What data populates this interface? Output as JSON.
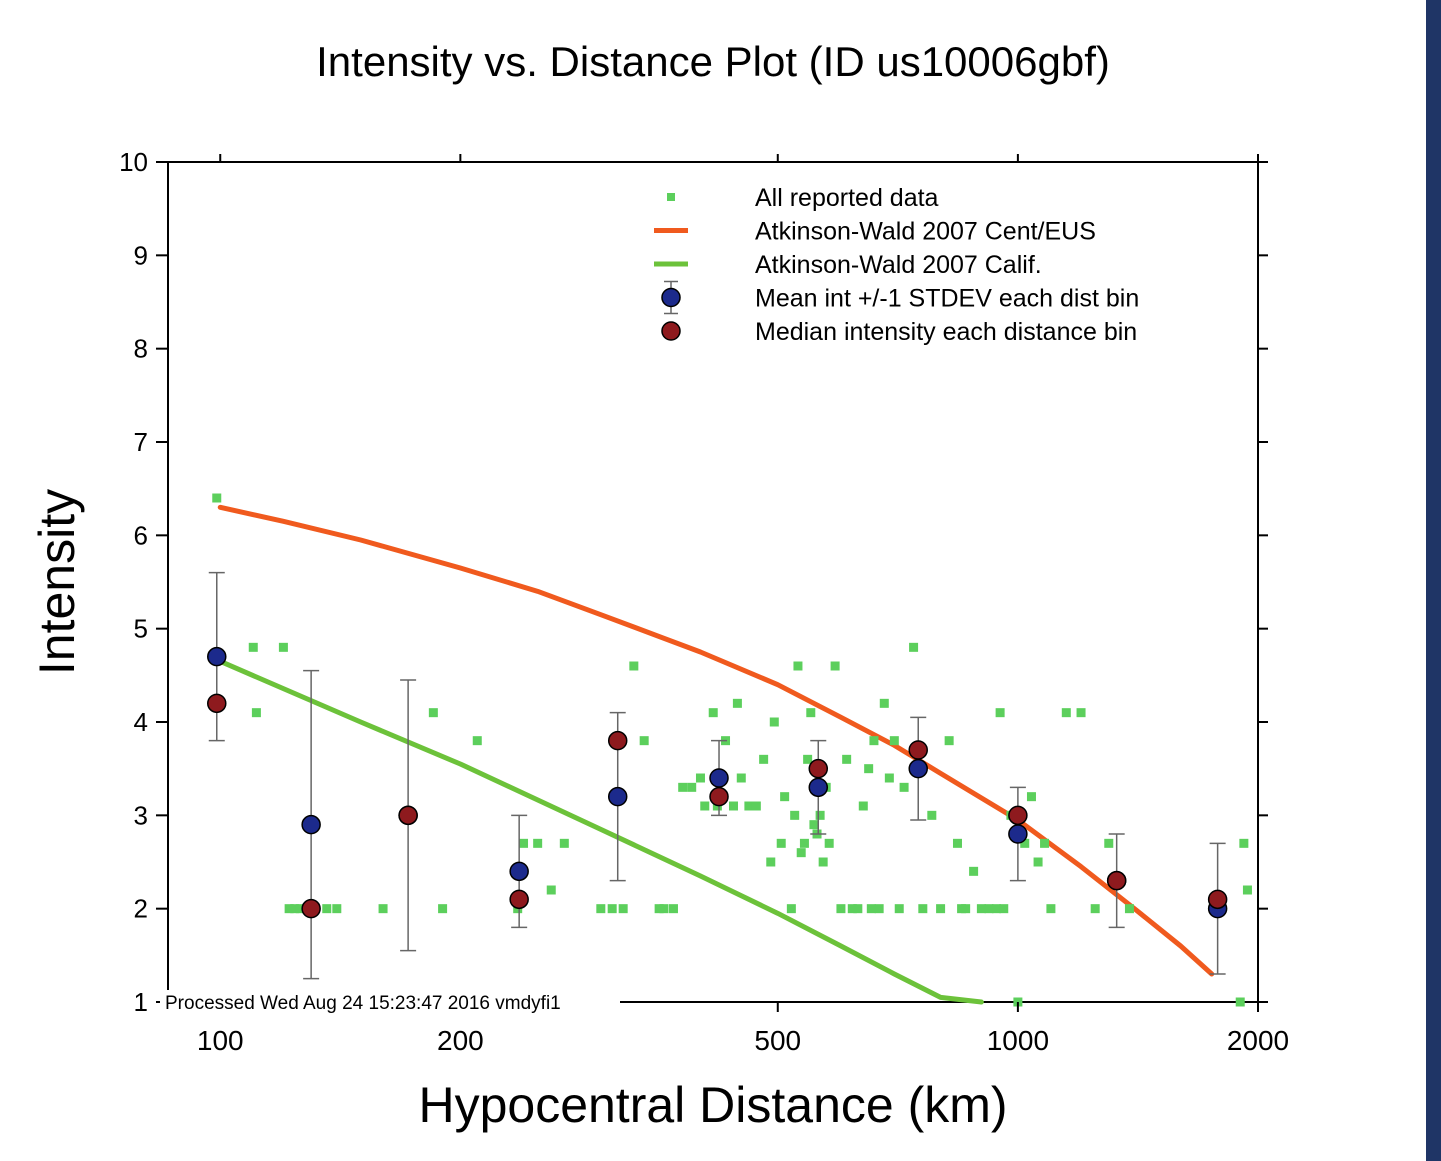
{
  "colors": {
    "cent_eus_curve": "#f05a1e",
    "calif_curve": "#6cc23a",
    "reported_points": "#5ccf5c",
    "mean_point": "#1c2a8c",
    "median_point": "#8e1a1e",
    "error_bar": "#666666",
    "axis": "#000000",
    "side_strip": "#1f3566"
  },
  "chart_data": {
    "type": "scatter",
    "title": "Intensity vs. Distance Plot (ID us10006gbf)",
    "xlabel": "Hypocentral Distance (km)",
    "ylabel": "Intensity",
    "xscale": "log",
    "xlim": [
      86,
      2000
    ],
    "ylim": [
      1,
      10
    ],
    "xticks": [
      100,
      200,
      500,
      1000,
      2000
    ],
    "xtick_labels": [
      "100",
      "200",
      "500",
      "1000",
      "2000"
    ],
    "yticks": [
      1,
      2,
      3,
      4,
      5,
      6,
      7,
      8,
      9,
      10
    ],
    "ytick_labels": [
      "1",
      "2",
      "3",
      "4",
      "5",
      "6",
      "7",
      "8",
      "9",
      "10"
    ],
    "grid": false,
    "legend_position": "top-right",
    "legend": [
      {
        "label": "All reported data",
        "kind": "dot",
        "color_key": "reported_points"
      },
      {
        "label": "Atkinson-Wald 2007 Cent/EUS",
        "kind": "line",
        "color_key": "cent_eus_curve"
      },
      {
        "label": "Atkinson-Wald 2007 Calif.",
        "kind": "line",
        "color_key": "calif_curve"
      },
      {
        "label": "Mean int +/-1 STDEV each dist bin",
        "kind": "circle_err",
        "color_key": "mean_point"
      },
      {
        "label": "Median intensity each distance bin",
        "kind": "circle",
        "color_key": "median_point"
      }
    ],
    "footer": "Processed Wed Aug 24 15:23:47 2016 vmdyfi1",
    "series": [
      {
        "name": "Atkinson-Wald 2007 Cent/EUS",
        "type": "line",
        "x": [
          100,
          120,
          150,
          200,
          250,
          300,
          400,
          500,
          600,
          700,
          800,
          1000,
          1200,
          1400,
          1600,
          1750
        ],
        "y": [
          6.3,
          6.15,
          5.95,
          5.65,
          5.4,
          5.15,
          4.75,
          4.4,
          4.05,
          3.75,
          3.45,
          2.95,
          2.45,
          2.0,
          1.6,
          1.3
        ]
      },
      {
        "name": "Atkinson-Wald 2007 Calif.",
        "type": "line",
        "x": [
          100,
          150,
          200,
          300,
          400,
          500,
          600,
          700,
          800,
          900
        ],
        "y": [
          4.65,
          4.0,
          3.55,
          2.85,
          2.35,
          1.95,
          1.6,
          1.3,
          1.05,
          1.0
        ]
      },
      {
        "name": "Mean int +/-1 STDEV each dist bin",
        "type": "errorbar",
        "points": [
          {
            "x": 99,
            "y": 4.7,
            "lo": 3.8,
            "hi": 5.6
          },
          {
            "x": 130,
            "y": 2.9,
            "lo": 1.25,
            "hi": 4.55
          },
          {
            "x": 172,
            "y": 3.0,
            "lo": 1.55,
            "hi": 4.45
          },
          {
            "x": 237,
            "y": 2.4,
            "lo": 1.8,
            "hi": 3.0
          },
          {
            "x": 315,
            "y": 3.2,
            "lo": 2.3,
            "hi": 4.1
          },
          {
            "x": 422,
            "y": 3.4,
            "lo": 3.0,
            "hi": 3.8
          },
          {
            "x": 562,
            "y": 3.3,
            "lo": 2.8,
            "hi": 3.8
          },
          {
            "x": 750,
            "y": 3.5,
            "lo": 2.95,
            "hi": 4.05
          },
          {
            "x": 1000,
            "y": 2.8,
            "lo": 2.3,
            "hi": 3.3
          },
          {
            "x": 1330,
            "y": 2.3,
            "lo": 1.8,
            "hi": 2.8
          },
          {
            "x": 1780,
            "y": 2.0,
            "lo": 1.3,
            "hi": 2.7
          }
        ]
      },
      {
        "name": "Median intensity each distance bin",
        "type": "scatter",
        "x": [
          99,
          130,
          172,
          237,
          315,
          422,
          562,
          750,
          1000,
          1330,
          1780
        ],
        "y": [
          4.2,
          2.0,
          3.0,
          2.1,
          3.8,
          3.2,
          3.5,
          3.7,
          3.0,
          2.3,
          2.1
        ]
      },
      {
        "name": "All reported data",
        "type": "scatter",
        "x": [
          99,
          100,
          110,
          111,
          120,
          122,
          124,
          126,
          130,
          136,
          140,
          160,
          185,
          190,
          210,
          236,
          240,
          250,
          260,
          270,
          300,
          310,
          320,
          330,
          340,
          355,
          360,
          370,
          380,
          390,
          400,
          405,
          415,
          420,
          430,
          440,
          445,
          450,
          460,
          470,
          480,
          490,
          495,
          505,
          510,
          520,
          525,
          530,
          535,
          540,
          545,
          550,
          555,
          560,
          565,
          570,
          575,
          580,
          590,
          600,
          610,
          620,
          630,
          640,
          650,
          655,
          660,
          670,
          680,
          690,
          700,
          710,
          720,
          740,
          760,
          780,
          800,
          820,
          840,
          850,
          860,
          880,
          900,
          920,
          940,
          950,
          960,
          980,
          1000,
          1020,
          1040,
          1060,
          1080,
          1100,
          1150,
          1200,
          1250,
          1300,
          1380,
          1900,
          1920,
          1940
        ],
        "y": [
          6.4,
          4.2,
          4.8,
          4.1,
          4.8,
          2.0,
          2.0,
          2.0,
          2.0,
          2.0,
          2.0,
          2.0,
          4.1,
          2.0,
          3.8,
          2.0,
          2.7,
          2.7,
          2.2,
          2.7,
          2.0,
          2.0,
          2.0,
          4.6,
          3.8,
          2.0,
          2.0,
          2.0,
          3.3,
          3.3,
          3.4,
          3.1,
          4.1,
          3.1,
          3.8,
          3.1,
          4.2,
          3.4,
          3.1,
          3.1,
          3.6,
          2.5,
          4.0,
          2.7,
          3.2,
          2.0,
          3.0,
          4.6,
          2.6,
          2.7,
          3.6,
          4.1,
          2.9,
          2.8,
          3.0,
          2.5,
          3.3,
          2.7,
          4.6,
          2.0,
          3.6,
          2.0,
          2.0,
          3.1,
          3.5,
          2.0,
          3.8,
          2.0,
          4.2,
          3.4,
          3.8,
          2.0,
          3.3,
          4.8,
          2.0,
          3.0,
          2.0,
          3.8,
          2.7,
          2.0,
          2.0,
          2.4,
          2.0,
          2.0,
          2.0,
          4.1,
          2.0,
          3.0,
          1.0,
          2.7,
          3.2,
          2.5,
          2.7,
          2.0,
          4.1,
          4.1,
          2.0,
          2.7,
          2.0,
          1.0,
          2.7,
          2.2
        ]
      }
    ]
  }
}
